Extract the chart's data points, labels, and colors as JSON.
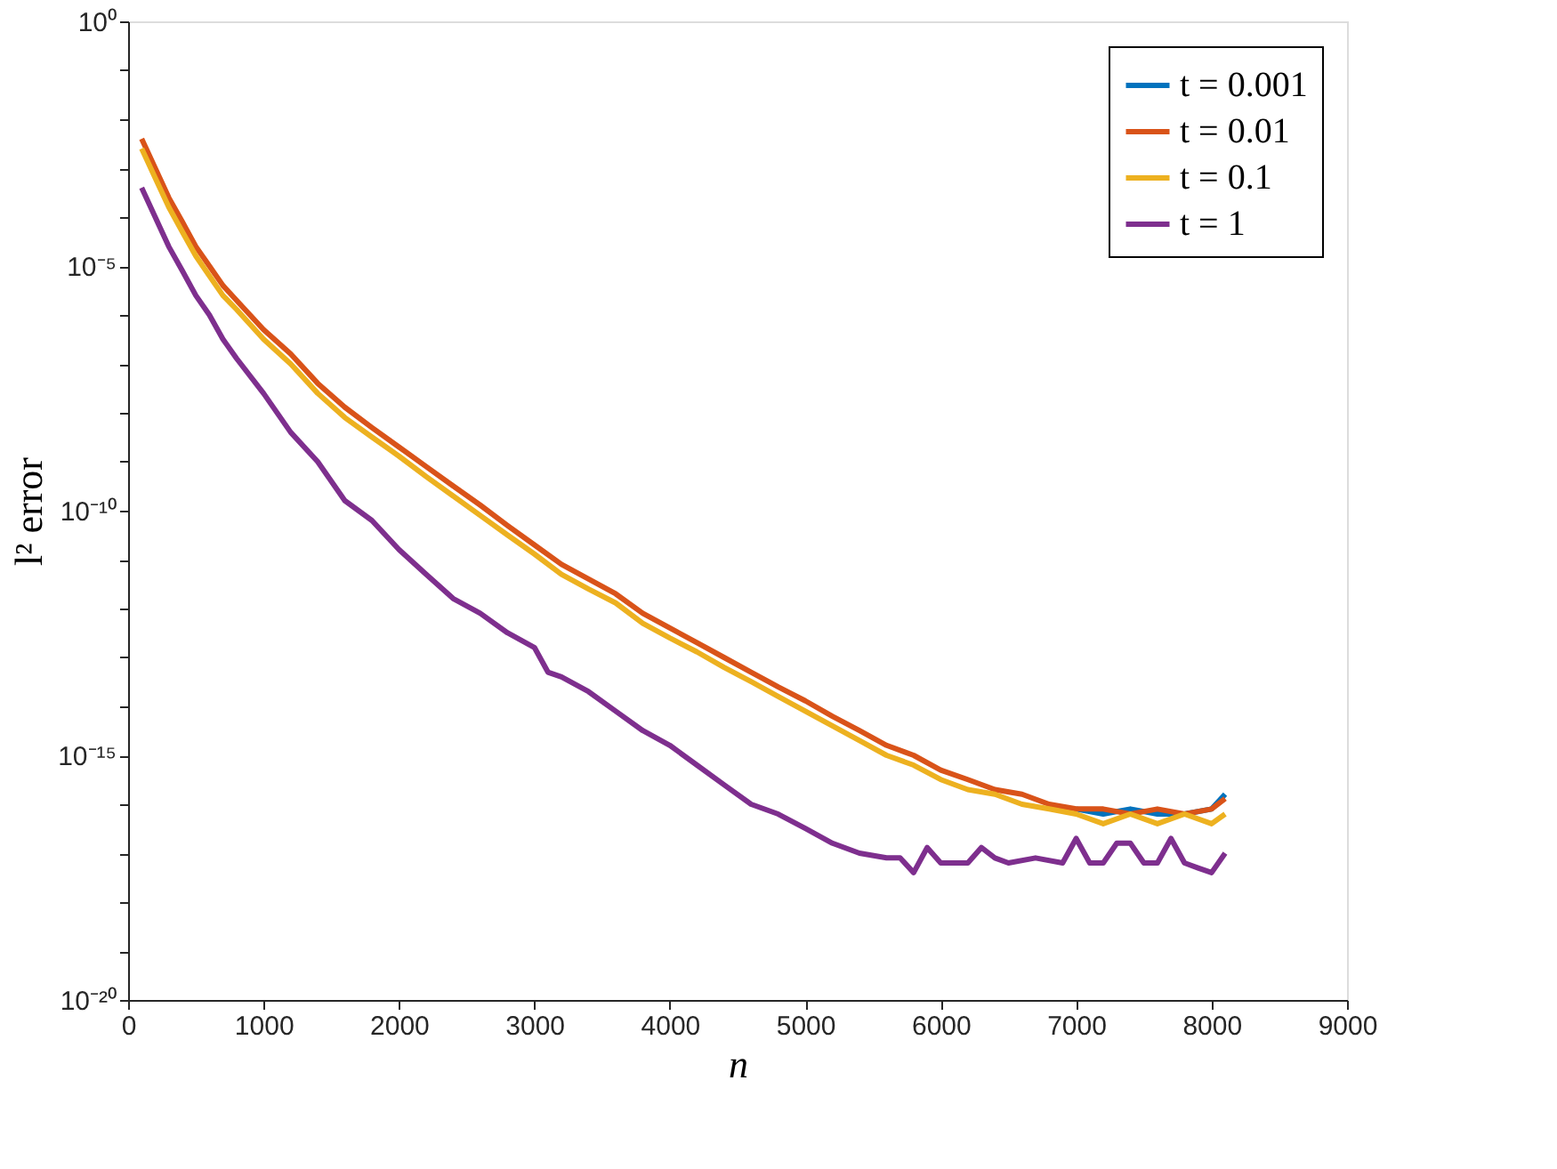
{
  "chart_data": {
    "type": "line",
    "xlabel": "n",
    "ylabel": "l² error",
    "log": "y",
    "grid": false,
    "legend": "top right",
    "line_style": "solid",
    "marker": "none",
    "xlim": [
      0,
      9000
    ],
    "xticks": [
      0,
      1000,
      2000,
      3000,
      4000,
      5000,
      6000,
      7000,
      8000,
      9000
    ],
    "ylim": [
      1e-20,
      1
    ],
    "yticks": [
      {
        "value": 1e-20,
        "label": "10⁻²⁰"
      },
      {
        "value": 1e-19,
        "label": null
      },
      {
        "value": 1e-18,
        "label": null
      },
      {
        "value": 1e-17,
        "label": null
      },
      {
        "value": 1e-16,
        "label": null
      },
      {
        "value": 1e-15,
        "label": "10⁻¹⁵"
      },
      {
        "value": 1e-14,
        "label": null
      },
      {
        "value": 1e-13,
        "label": null
      },
      {
        "value": 1e-12,
        "label": null
      },
      {
        "value": 1e-11,
        "label": null
      },
      {
        "value": 1e-10,
        "label": "10⁻¹⁰"
      },
      {
        "value": 1e-09,
        "label": null
      },
      {
        "value": 1e-08,
        "label": null
      },
      {
        "value": 1e-07,
        "label": null
      },
      {
        "value": 1e-06,
        "label": null
      },
      {
        "value": 1e-05,
        "label": "10⁻⁵"
      },
      {
        "value": 0.0001,
        "label": null
      },
      {
        "value": 0.001,
        "label": null
      },
      {
        "value": 0.01,
        "label": null
      },
      {
        "value": 0.1,
        "label": null
      },
      {
        "value": 1,
        "label": "10⁰"
      }
    ],
    "series": [
      {
        "name": "t = 0.001",
        "color": "#0072bd",
        "x": [
          7000,
          7200,
          7400,
          7600,
          7800,
          8000,
          8100
        ],
        "values": [
          8e-17,
          6.3e-17,
          8e-17,
          6.3e-17,
          6.3e-17,
          8e-17,
          1.6e-16
        ]
      },
      {
        "name": "t = 0.01",
        "color": "#d95319",
        "x": [
          100,
          200,
          300,
          400,
          500,
          600,
          700,
          800,
          1000,
          1200,
          1400,
          1600,
          1800,
          2000,
          2200,
          2400,
          2600,
          2800,
          3000,
          3200,
          3400,
          3600,
          3800,
          4000,
          4200,
          4400,
          4600,
          4800,
          5000,
          5200,
          5400,
          5600,
          5800,
          6000,
          6200,
          6400,
          6600,
          6800,
          7000,
          7200,
          7400,
          7600,
          7800,
          8000,
          8100
        ],
        "values": [
          0.004,
          0.001,
          0.00025,
          8e-05,
          2.5e-05,
          1e-05,
          4e-06,
          2e-06,
          5e-07,
          1.6e-07,
          4e-08,
          1.3e-08,
          5e-09,
          2e-09,
          8e-10,
          3.2e-10,
          1.3e-10,
          5e-11,
          2e-11,
          8e-12,
          4e-12,
          2e-12,
          8e-13,
          4e-13,
          2e-13,
          1e-13,
          5e-14,
          2.5e-14,
          1.3e-14,
          6.3e-15,
          3.2e-15,
          1.6e-15,
          1e-15,
          5e-16,
          3.2e-16,
          2e-16,
          1.6e-16,
          1e-16,
          8e-17,
          8e-17,
          6.3e-17,
          8e-17,
          6.3e-17,
          8e-17,
          1.3e-16
        ]
      },
      {
        "name": "t = 0.1",
        "color": "#edb120",
        "x": [
          100,
          200,
          300,
          400,
          500,
          600,
          700,
          800,
          1000,
          1200,
          1400,
          1600,
          1800,
          2000,
          2200,
          2400,
          2600,
          2800,
          3000,
          3200,
          3400,
          3600,
          3800,
          4000,
          4200,
          4400,
          4600,
          4800,
          5000,
          5200,
          5400,
          5600,
          5800,
          6000,
          6200,
          6400,
          6600,
          6800,
          7000,
          7200,
          7400,
          7600,
          7800,
          8000,
          8100
        ],
        "values": [
          0.0025,
          0.00063,
          0.00016,
          5e-05,
          1.6e-05,
          6.3e-06,
          2.5e-06,
          1.3e-06,
          3.2e-07,
          1e-07,
          2.5e-08,
          8e-09,
          3.2e-09,
          1.3e-09,
          5e-10,
          2e-10,
          8e-11,
          3.2e-11,
          1.3e-11,
          5e-12,
          2.5e-12,
          1.3e-12,
          5e-13,
          2.5e-13,
          1.3e-13,
          6.3e-14,
          3.2e-14,
          1.6e-14,
          8e-15,
          4e-15,
          2e-15,
          1e-15,
          6.3e-16,
          3.2e-16,
          2e-16,
          1.6e-16,
          1e-16,
          8e-17,
          6.3e-17,
          4e-17,
          6.3e-17,
          4e-17,
          6.3e-17,
          4e-17,
          6.3e-17
        ]
      },
      {
        "name": "t = 1",
        "color": "#7e2f8e",
        "x": [
          100,
          200,
          300,
          400,
          500,
          600,
          700,
          800,
          1000,
          1200,
          1400,
          1600,
          1800,
          2000,
          2200,
          2400,
          2600,
          2800,
          3000,
          3100,
          3200,
          3400,
          3600,
          3800,
          4000,
          4200,
          4400,
          4600,
          4800,
          5000,
          5200,
          5400,
          5600,
          5700,
          5800,
          5900,
          6000,
          6200,
          6300,
          6400,
          6500,
          6700,
          6900,
          7000,
          7100,
          7200,
          7300,
          7400,
          7500,
          7600,
          7700,
          7800,
          7900,
          8000,
          8100
        ],
        "values": [
          0.0004,
          0.0001,
          2.5e-05,
          8e-06,
          2.5e-06,
          1e-06,
          3.2e-07,
          1.3e-07,
          2.5e-08,
          4e-09,
          1e-09,
          1.6e-10,
          6.3e-11,
          1.6e-11,
          5e-12,
          1.6e-12,
          8e-13,
          3.2e-13,
          1.6e-13,
          5e-14,
          4e-14,
          2e-14,
          8e-15,
          3.2e-15,
          1.6e-15,
          6.3e-16,
          2.5e-16,
          1e-16,
          6.3e-17,
          3.2e-17,
          1.6e-17,
          1e-17,
          8e-18,
          8e-18,
          4e-18,
          1.3e-17,
          6.3e-18,
          6.3e-18,
          1.3e-17,
          8e-18,
          6.3e-18,
          8e-18,
          6.3e-18,
          2e-17,
          6.3e-18,
          6.3e-18,
          1.6e-17,
          1.6e-17,
          6.3e-18,
          6.3e-18,
          2e-17,
          6.3e-18,
          5e-18,
          4e-18,
          1e-17
        ]
      }
    ]
  }
}
